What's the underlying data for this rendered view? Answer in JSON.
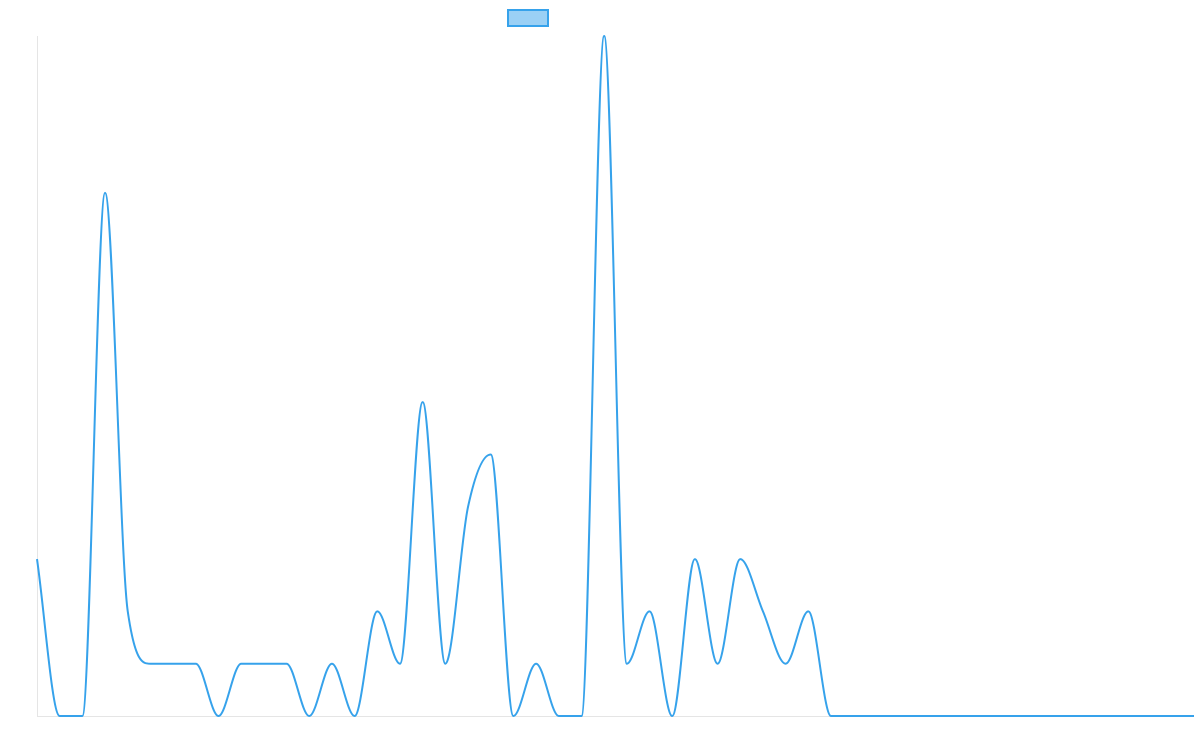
{
  "chart_data": {
    "type": "line",
    "title": "",
    "xlabel": "",
    "ylabel": "",
    "legend": "top-center",
    "grid": false,
    "ylim": [
      0,
      13
    ],
    "x": [
      0,
      1,
      2,
      3,
      4,
      5,
      6,
      7,
      8,
      9,
      10,
      11,
      12,
      13,
      14,
      15,
      16,
      17,
      18,
      19,
      20,
      21,
      22,
      23,
      24,
      25,
      26,
      27,
      28,
      29,
      30,
      31,
      32,
      33,
      34,
      35,
      36,
      37,
      38,
      39,
      40,
      41,
      42,
      43,
      44,
      45,
      46,
      47,
      48,
      49,
      50,
      51
    ],
    "series": [
      {
        "color": "#36a2eb",
        "fill": "#9ad0f5",
        "values": [
          3,
          0,
          0,
          10,
          2,
          1,
          1,
          1,
          0,
          1,
          1,
          1,
          0,
          1,
          0,
          2,
          1,
          6,
          1,
          4,
          5,
          0,
          1,
          0,
          0,
          13,
          1,
          2,
          0,
          3,
          1,
          3,
          2,
          1,
          2,
          0,
          0,
          0,
          0,
          0,
          0,
          0,
          0,
          0,
          0,
          0,
          0,
          0,
          0,
          0,
          0,
          0
        ]
      }
    ]
  }
}
